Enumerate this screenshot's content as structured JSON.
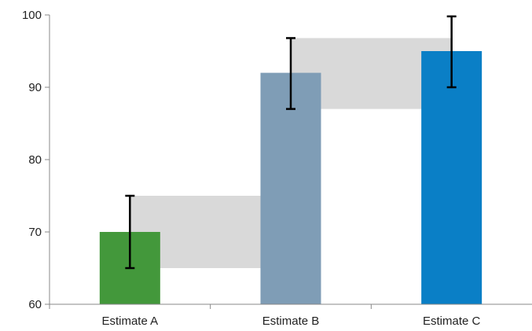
{
  "chart_data": {
    "type": "bar",
    "categories": [
      "Estimate A",
      "Estimate B",
      "Estimate C"
    ],
    "values": [
      70,
      92,
      95
    ],
    "error_bars": [
      {
        "low": 65,
        "high": 75
      },
      {
        "low": 87,
        "high": 96.8
      },
      {
        "low": 90,
        "high": 99.8
      }
    ],
    "connector_bands": [
      {
        "from": "Estimate A",
        "to": "Estimate B",
        "low": 65,
        "high": 75
      },
      {
        "from": "Estimate B",
        "to": "Estimate C",
        "low": 87,
        "high": 96.8
      }
    ],
    "bar_colors": [
      "#43983b",
      "#7f9db6",
      "#0a7fc6"
    ],
    "band_color": "#d9d9d9",
    "ylim": [
      60,
      100
    ],
    "yticks": [
      60,
      70,
      80,
      90,
      100
    ],
    "title": "",
    "xlabel": "",
    "ylabel": "",
    "grid": false
  }
}
